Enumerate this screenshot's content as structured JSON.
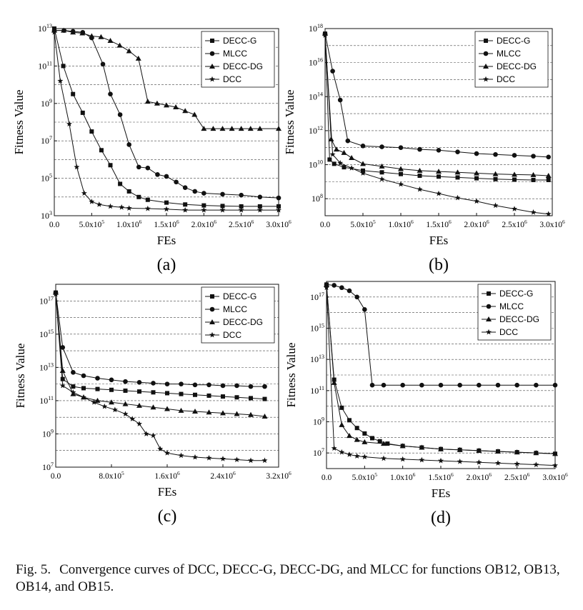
{
  "figure": {
    "caption_label": "Fig. 5.",
    "caption_text": "Convergence curves of DCC, DECC-G, DECC-DG, and MLCC for functions OB12, OB13, OB14, and OB15."
  },
  "chart_data": [
    {
      "type": "line",
      "panel_label": "(a)",
      "xlabel": "FEs",
      "ylabel": "Fitness Value",
      "yscale": "log",
      "xlim": [
        0,
        3000000
      ],
      "ylim_exp": [
        3,
        13
      ],
      "xtick_labels": [
        {
          "m": "0.0",
          "e": ""
        },
        {
          "m": "5.0x10",
          "e": "5"
        },
        {
          "m": "1.0x10",
          "e": "6"
        },
        {
          "m": "1.5x10",
          "e": "6"
        },
        {
          "m": "2.0x10",
          "e": "6"
        },
        {
          "m": "2.5x10",
          "e": "6"
        },
        {
          "m": "3.0x10",
          "e": "6"
        }
      ],
      "xtick_values": [
        0,
        500000,
        1000000,
        1500000,
        2000000,
        2500000,
        3000000
      ],
      "ytick_labels": [
        {
          "b": "10",
          "e": "3"
        },
        {
          "b": "10",
          "e": "5"
        },
        {
          "b": "10",
          "e": "7"
        },
        {
          "b": "10",
          "e": "9"
        },
        {
          "b": "10",
          "e": "11"
        },
        {
          "b": "10",
          "e": "13"
        }
      ],
      "ytick_exps": [
        3,
        5,
        7,
        9,
        11,
        13
      ],
      "legend": [
        "DECC-G",
        "MLCC",
        "DECC-DG",
        "DCC"
      ],
      "series": [
        {
          "name": "DECC-G",
          "marker": "square",
          "x": [
            0,
            120000,
            250000,
            380000,
            500000,
            630000,
            750000,
            880000,
            1000000,
            1130000,
            1250000,
            1500000,
            1750000,
            2000000,
            2250000,
            2500000,
            2750000,
            3000000
          ],
          "y": [
            13,
            11,
            9.5,
            8.5,
            7.5,
            6.5,
            5.7,
            4.7,
            4.3,
            4,
            3.85,
            3.7,
            3.6,
            3.55,
            3.52,
            3.5,
            3.5,
            3.5
          ]
        },
        {
          "name": "MLCC",
          "marker": "circle",
          "x": [
            0,
            130000,
            250000,
            380000,
            500000,
            650000,
            750000,
            880000,
            1000000,
            1130000,
            1250000,
            1380000,
            1500000,
            1630000,
            1750000,
            1880000,
            2000000,
            2250000,
            2500000,
            2750000,
            3000000
          ],
          "y": [
            12.9,
            12.9,
            12.85,
            12.8,
            12.5,
            11.1,
            9.5,
            8.4,
            6.8,
            5.6,
            5.55,
            5.2,
            5.1,
            4.8,
            4.5,
            4.3,
            4.2,
            4.15,
            4.1,
            4.0,
            3.95
          ]
        },
        {
          "name": "DECC-DG",
          "marker": "triangle",
          "x": [
            0,
            125000,
            250000,
            375000,
            500000,
            625000,
            750000,
            875000,
            1000000,
            1125000,
            1250000,
            1375000,
            1500000,
            1625000,
            1750000,
            1875000,
            2000000,
            2125000,
            2250000,
            2375000,
            2500000,
            2625000,
            2750000,
            3000000
          ],
          "y": [
            12.9,
            12.9,
            12.8,
            12.75,
            12.6,
            12.55,
            12.35,
            12.1,
            11.8,
            11.4,
            9.1,
            9.0,
            8.9,
            8.8,
            8.6,
            8.4,
            7.65,
            7.65,
            7.65,
            7.65,
            7.65,
            7.65,
            7.65,
            7.65
          ]
        },
        {
          "name": "DCC",
          "marker": "star",
          "x": [
            0,
            80000,
            200000,
            300000,
            400000,
            500000,
            600000,
            750000,
            900000,
            1000000,
            1250000,
            1500000,
            1750000,
            2000000,
            2250000,
            2500000,
            2750000,
            3000000
          ],
          "y": [
            12.8,
            10.2,
            7.9,
            5.6,
            4.2,
            3.75,
            3.6,
            3.5,
            3.45,
            3.4,
            3.38,
            3.35,
            3.3,
            3.3,
            3.3,
            3.3,
            3.3,
            3.3
          ]
        }
      ]
    },
    {
      "type": "line",
      "panel_label": "(b)",
      "xlabel": "FEs",
      "ylabel": "Fitness Value",
      "yscale": "log",
      "xlim": [
        0,
        3000000
      ],
      "ylim_exp": [
        7,
        18
      ],
      "xtick_labels": [
        {
          "m": "0.0",
          "e": ""
        },
        {
          "m": "5.0x10",
          "e": "5"
        },
        {
          "m": "1.0x10",
          "e": "6"
        },
        {
          "m": "1.5x10",
          "e": "6"
        },
        {
          "m": "2.0x10",
          "e": "6"
        },
        {
          "m": "2.5x10",
          "e": "6"
        },
        {
          "m": "3.0x10",
          "e": "6"
        }
      ],
      "xtick_values": [
        0,
        500000,
        1000000,
        1500000,
        2000000,
        2500000,
        3000000
      ],
      "ytick_labels": [
        {
          "b": "10",
          "e": "8"
        },
        {
          "b": "10",
          "e": "10"
        },
        {
          "b": "10",
          "e": "12"
        },
        {
          "b": "10",
          "e": "14"
        },
        {
          "b": "10",
          "e": "16"
        },
        {
          "b": "10",
          "e": "18"
        }
      ],
      "ytick_exps": [
        8,
        10,
        12,
        14,
        16,
        18
      ],
      "legend": [
        "DECC-G",
        "MLCC",
        "DECC-DG",
        "DCC"
      ],
      "series": [
        {
          "name": "DECC-G",
          "marker": "square",
          "x": [
            0,
            60000,
            120000,
            250000,
            500000,
            750000,
            1000000,
            1250000,
            1500000,
            1750000,
            2000000,
            2250000,
            2500000,
            2750000,
            2950000
          ],
          "y": [
            17.7,
            10.3,
            10.05,
            9.85,
            9.65,
            9.55,
            9.45,
            9.35,
            9.3,
            9.25,
            9.2,
            9.15,
            9.12,
            9.1,
            9.1
          ]
        },
        {
          "name": "MLCC",
          "marker": "circle",
          "x": [
            0,
            100000,
            200000,
            300000,
            500000,
            750000,
            1000000,
            1250000,
            1500000,
            1750000,
            2000000,
            2250000,
            2500000,
            2750000,
            2950000
          ],
          "y": [
            17.7,
            15.5,
            13.8,
            11.4,
            11.1,
            11.05,
            11.0,
            10.9,
            10.85,
            10.75,
            10.65,
            10.6,
            10.55,
            10.5,
            10.45
          ]
        },
        {
          "name": "DECC-DG",
          "marker": "triangle",
          "x": [
            0,
            80000,
            150000,
            250000,
            350000,
            500000,
            750000,
            1000000,
            1250000,
            1500000,
            1750000,
            2000000,
            2250000,
            2500000,
            2750000,
            2950000
          ],
          "y": [
            17.7,
            11.5,
            10.9,
            10.7,
            10.4,
            10.05,
            9.9,
            9.75,
            9.65,
            9.6,
            9.55,
            9.5,
            9.45,
            9.42,
            9.4,
            9.35
          ]
        },
        {
          "name": "DCC",
          "marker": "star",
          "x": [
            0,
            100000,
            200000,
            350000,
            500000,
            750000,
            1000000,
            1250000,
            1500000,
            1750000,
            2000000,
            2250000,
            2500000,
            2750000,
            2950000
          ],
          "y": [
            17.6,
            10.6,
            10.1,
            9.8,
            9.5,
            9.15,
            8.85,
            8.55,
            8.3,
            8.05,
            7.85,
            7.6,
            7.4,
            7.2,
            7.1
          ]
        }
      ]
    },
    {
      "type": "line",
      "panel_label": "(c)",
      "xlabel": "FEs",
      "ylabel": "Fitness Value",
      "yscale": "log",
      "xlim": [
        0,
        3200000
      ],
      "ylim_exp": [
        7,
        18
      ],
      "xtick_labels": [
        {
          "m": "0.0",
          "e": ""
        },
        {
          "m": "8.0x10",
          "e": "5"
        },
        {
          "m": "1.6x10",
          "e": "6"
        },
        {
          "m": "2.4x10",
          "e": "6"
        },
        {
          "m": "3.2x10",
          "e": "6"
        }
      ],
      "xtick_values": [
        0,
        800000,
        1600000,
        2400000,
        3200000
      ],
      "ytick_labels": [
        {
          "b": "10",
          "e": "7"
        },
        {
          "b": "10",
          "e": "9"
        },
        {
          "b": "10",
          "e": "11"
        },
        {
          "b": "10",
          "e": "13"
        },
        {
          "b": "10",
          "e": "15"
        },
        {
          "b": "10",
          "e": "17"
        }
      ],
      "ytick_exps": [
        7,
        9,
        11,
        13,
        15,
        17
      ],
      "legend": [
        "DECC-G",
        "MLCC",
        "DECC-DG",
        "DCC"
      ],
      "series": [
        {
          "name": "DECC-G",
          "marker": "square",
          "x": [
            0,
            100000,
            250000,
            400000,
            600000,
            800000,
            1000000,
            1200000,
            1400000,
            1600000,
            1800000,
            2000000,
            2200000,
            2400000,
            2600000,
            2800000,
            3000000
          ],
          "y": [
            17.5,
            12.3,
            11.85,
            11.75,
            11.7,
            11.65,
            11.6,
            11.55,
            11.5,
            11.45,
            11.4,
            11.35,
            11.3,
            11.25,
            11.2,
            11.15,
            11.1
          ]
        },
        {
          "name": "MLCC",
          "marker": "circle",
          "x": [
            0,
            100000,
            250000,
            400000,
            600000,
            800000,
            1000000,
            1200000,
            1400000,
            1600000,
            1800000,
            2000000,
            2200000,
            2400000,
            2600000,
            2800000,
            3000000
          ],
          "y": [
            17.5,
            14.2,
            12.7,
            12.5,
            12.35,
            12.25,
            12.15,
            12.1,
            12.05,
            12.0,
            12.0,
            11.95,
            11.95,
            11.9,
            11.9,
            11.85,
            11.85
          ]
        },
        {
          "name": "DECC-DG",
          "marker": "triangle",
          "x": [
            0,
            100000,
            250000,
            400000,
            600000,
            800000,
            1000000,
            1200000,
            1400000,
            1600000,
            1800000,
            2000000,
            2200000,
            2400000,
            2600000,
            2800000,
            3000000
          ],
          "y": [
            17.5,
            12.8,
            11.4,
            11.2,
            11.0,
            10.9,
            10.8,
            10.7,
            10.6,
            10.5,
            10.4,
            10.35,
            10.3,
            10.25,
            10.2,
            10.15,
            10.05
          ]
        },
        {
          "name": "DCC",
          "marker": "star",
          "x": [
            0,
            100000,
            250000,
            400000,
            550000,
            700000,
            850000,
            1000000,
            1100000,
            1200000,
            1300000,
            1400000,
            1500000,
            1600000,
            1800000,
            2000000,
            2200000,
            2400000,
            2600000,
            2800000,
            3000000
          ],
          "y": [
            17.4,
            11.9,
            11.5,
            11.2,
            10.9,
            10.65,
            10.45,
            10.2,
            9.9,
            9.6,
            9.0,
            8.9,
            8.1,
            7.85,
            7.7,
            7.6,
            7.55,
            7.5,
            7.45,
            7.4,
            7.4
          ]
        }
      ]
    },
    {
      "type": "line",
      "panel_label": "(d)",
      "xlabel": "FEs",
      "ylabel": "Fitness Value",
      "yscale": "log",
      "xlim": [
        0,
        3000000
      ],
      "ylim_exp": [
        6,
        18
      ],
      "xtick_labels": [
        {
          "m": "0.0",
          "e": ""
        },
        {
          "m": "5.0x10",
          "e": "5"
        },
        {
          "m": "1.0x10",
          "e": "6"
        },
        {
          "m": "1.5x10",
          "e": "6"
        },
        {
          "m": "2.0x10",
          "e": "6"
        },
        {
          "m": "2.5x10",
          "e": "6"
        },
        {
          "m": "3.0x10",
          "e": "6"
        }
      ],
      "xtick_values": [
        0,
        500000,
        1000000,
        1500000,
        2000000,
        2500000,
        3000000
      ],
      "ytick_labels": [
        {
          "b": "10",
          "e": "7"
        },
        {
          "b": "10",
          "e": "9"
        },
        {
          "b": "10",
          "e": "11"
        },
        {
          "b": "10",
          "e": "13"
        },
        {
          "b": "10",
          "e": "15"
        },
        {
          "b": "10",
          "e": "17"
        }
      ],
      "ytick_exps": [
        7,
        9,
        11,
        13,
        15,
        17
      ],
      "legend": [
        "DECC-G",
        "MLCC",
        "DECC-DG",
        "DCC"
      ],
      "series": [
        {
          "name": "DECC-G",
          "marker": "square",
          "x": [
            0,
            100000,
            200000,
            300000,
            400000,
            500000,
            600000,
            700000,
            800000,
            1000000,
            1250000,
            1500000,
            1750000,
            2000000,
            2250000,
            2500000,
            2750000,
            3000000
          ],
          "y": [
            17.8,
            11.7,
            9.9,
            9.1,
            8.6,
            8.25,
            7.95,
            7.75,
            7.6,
            7.45,
            7.35,
            7.25,
            7.2,
            7.15,
            7.1,
            7.05,
            7.0,
            6.95
          ]
        },
        {
          "name": "MLCC",
          "marker": "circle",
          "x": [
            0,
            100000,
            200000,
            300000,
            400000,
            500000,
            600000,
            750000,
            1000000,
            1250000,
            1500000,
            1750000,
            2000000,
            2250000,
            2500000,
            2750000,
            3000000
          ],
          "y": [
            17.8,
            17.75,
            17.6,
            17.4,
            17.0,
            16.2,
            11.35,
            11.35,
            11.35,
            11.35,
            11.35,
            11.35,
            11.35,
            11.35,
            11.35,
            11.35,
            11.35
          ]
        },
        {
          "name": "DECC-DG",
          "marker": "triangle",
          "x": [
            0,
            100000,
            200000,
            300000,
            400000,
            500000,
            750000,
            1000000,
            1250000,
            1500000,
            1750000,
            2000000,
            2250000,
            2500000,
            2750000,
            3000000
          ],
          "y": [
            17.8,
            11.5,
            8.8,
            8.1,
            7.85,
            7.7,
            7.6,
            7.45,
            7.35,
            7.25,
            7.2,
            7.15,
            7.1,
            7.05,
            7.0,
            6.95
          ]
        },
        {
          "name": "DCC",
          "marker": "star",
          "x": [
            0,
            100000,
            200000,
            300000,
            400000,
            500000,
            750000,
            1000000,
            1250000,
            1500000,
            1750000,
            2000000,
            2250000,
            2500000,
            2750000,
            3000000
          ],
          "y": [
            17.6,
            7.3,
            7.05,
            6.9,
            6.8,
            6.75,
            6.65,
            6.6,
            6.55,
            6.5,
            6.45,
            6.4,
            6.35,
            6.3,
            6.25,
            6.2
          ]
        }
      ]
    }
  ]
}
